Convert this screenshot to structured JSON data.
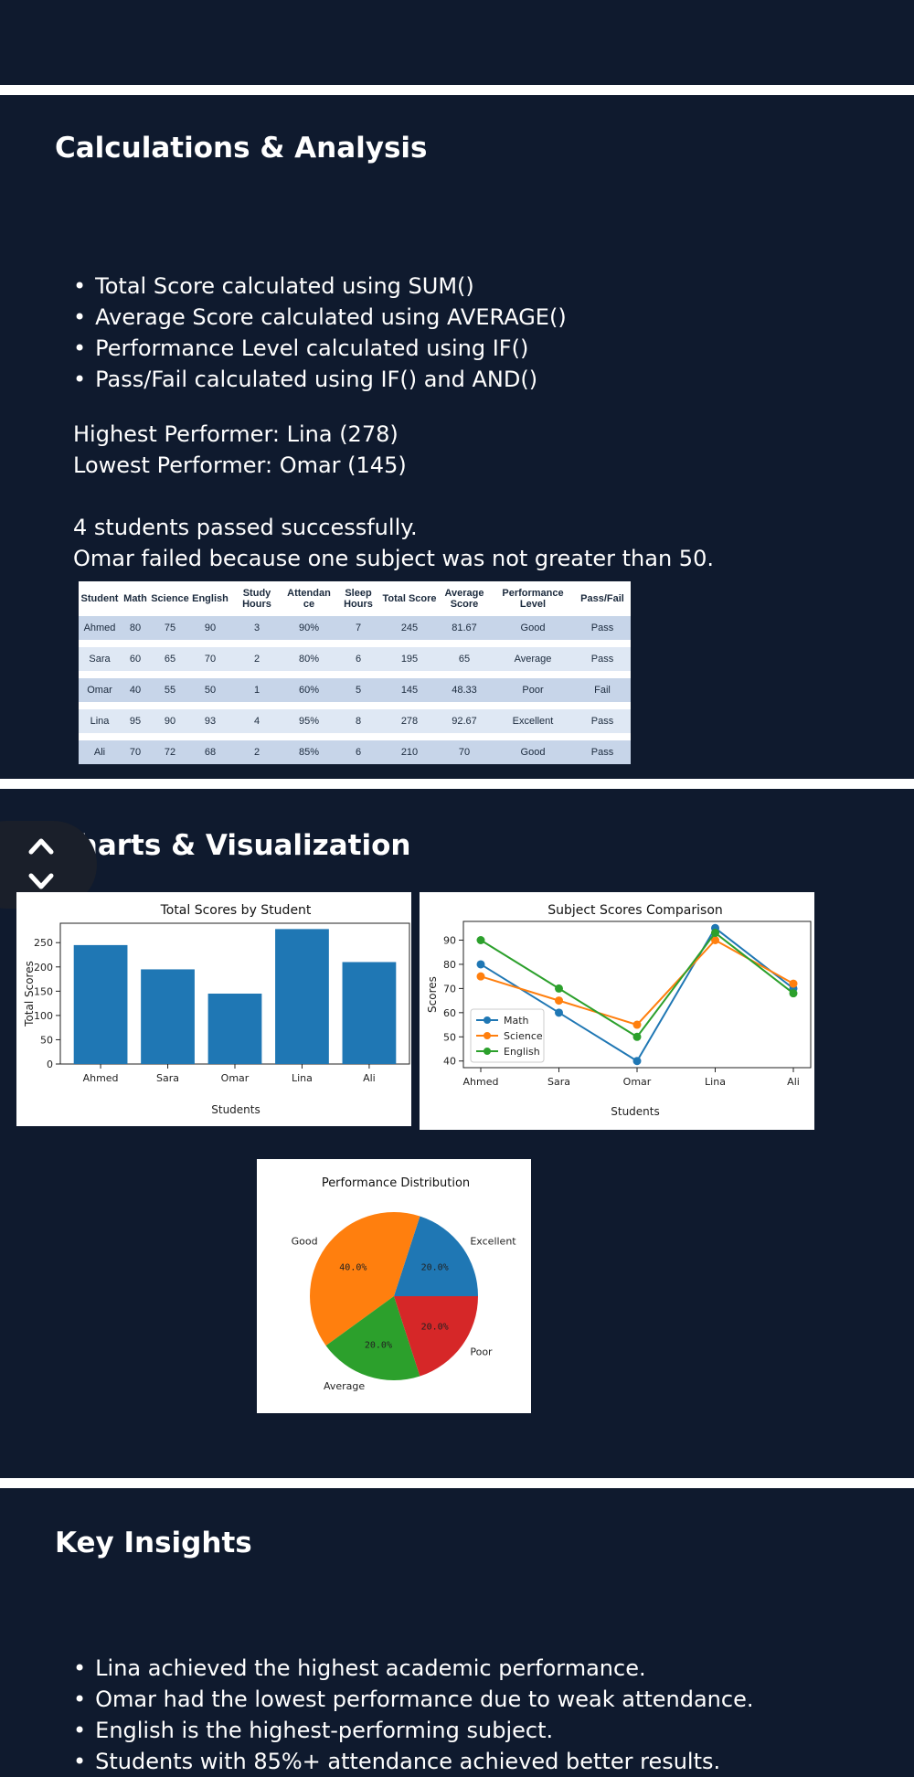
{
  "calc": {
    "title": "Calculations & Analysis",
    "bullets": [
      "Total Score calculated using SUM()",
      "Average Score calculated using AVERAGE()",
      "Performance Level calculated using IF()",
      "Pass/Fail calculated using IF() and AND()"
    ],
    "highest": "Highest Performer: Lina (278)",
    "lowest": "Lowest Performer: Omar (145)",
    "passed": "4 students passed successfully.",
    "failed": "Omar failed because one subject was not greater than 50."
  },
  "table": {
    "headers": [
      "Student",
      "Math",
      "Science",
      "English",
      "Study Hours",
      "Attendan ce",
      "Sleep Hours",
      "Total Score",
      "Average Score",
      "Performance Level",
      "Pass/Fail"
    ],
    "rows": [
      [
        "Ahmed",
        "80",
        "75",
        "90",
        "3",
        "90%",
        "7",
        "245",
        "81.67",
        "Good",
        "Pass"
      ],
      [
        "Sara",
        "60",
        "65",
        "70",
        "2",
        "80%",
        "6",
        "195",
        "65",
        "Average",
        "Pass"
      ],
      [
        "Omar",
        "40",
        "55",
        "50",
        "1",
        "60%",
        "5",
        "145",
        "48.33",
        "Poor",
        "Fail"
      ],
      [
        "Lina",
        "95",
        "90",
        "93",
        "4",
        "95%",
        "8",
        "278",
        "92.67",
        "Excellent",
        "Pass"
      ],
      [
        "Ali",
        "70",
        "72",
        "68",
        "2",
        "85%",
        "6",
        "210",
        "70",
        "Good",
        "Pass"
      ]
    ]
  },
  "charts_section": {
    "title": "Charts & Visualization"
  },
  "chart_data": [
    {
      "type": "bar",
      "title": "Total Scores by Student",
      "categories": [
        "Ahmed",
        "Sara",
        "Omar",
        "Lina",
        "Ali"
      ],
      "values": [
        245,
        195,
        145,
        278,
        210
      ],
      "xlabel": "Students",
      "ylabel": "Total Scores",
      "ylim": [
        0,
        290
      ],
      "yticks": [
        0,
        50,
        100,
        150,
        200,
        250
      ],
      "color": "#1f77b4"
    },
    {
      "type": "line",
      "title": "Subject Scores Comparison",
      "categories": [
        "Ahmed",
        "Sara",
        "Omar",
        "Lina",
        "Ali"
      ],
      "series": [
        {
          "name": "Math",
          "values": [
            80,
            60,
            40,
            95,
            70
          ],
          "color": "#1f77b4"
        },
        {
          "name": "Science",
          "values": [
            75,
            65,
            55,
            90,
            72
          ],
          "color": "#ff7f0e"
        },
        {
          "name": "English",
          "values": [
            90,
            70,
            50,
            93,
            68
          ],
          "color": "#2ca02c"
        }
      ],
      "xlabel": "Students",
      "ylabel": "Scores",
      "ylim": [
        37.25,
        97.75
      ],
      "yticks": [
        40,
        50,
        60,
        70,
        80,
        90
      ],
      "legend": "center-left"
    },
    {
      "type": "pie",
      "title": "Performance Distribution",
      "slices": [
        {
          "label": "Excellent",
          "value": 20.0,
          "pct": "20.0%",
          "color": "#1f77b4"
        },
        {
          "label": "Good",
          "value": 40.0,
          "pct": "40.0%",
          "color": "#ff7f0e"
        },
        {
          "label": "Average",
          "value": 20.0,
          "pct": "20.0%",
          "color": "#2ca02c"
        },
        {
          "label": "Poor",
          "value": 20.0,
          "pct": "20.0%",
          "color": "#d62728"
        }
      ]
    }
  ],
  "insights": {
    "title": "Key Insights",
    "bullets": [
      "Lina achieved the highest academic performance.",
      "Omar had the lowest performance due to weak attendance.",
      "English is the highest-performing subject.",
      "Students with 85%+ attendance achieved better results."
    ]
  }
}
